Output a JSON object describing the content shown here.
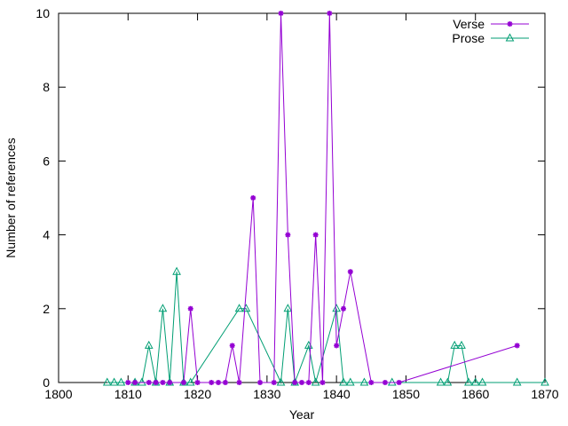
{
  "chart_data": {
    "type": "line",
    "title": "",
    "xlabel": "Year",
    "ylabel": "Number of references",
    "xlim": [
      1800,
      1870
    ],
    "ylim": [
      0,
      10
    ],
    "xticks": [
      1800,
      1810,
      1820,
      1830,
      1840,
      1850,
      1860,
      1870
    ],
    "yticks": [
      0,
      2,
      4,
      6,
      8,
      10
    ],
    "legend_position": "top-right",
    "grid": false,
    "series": [
      {
        "name": "Verse",
        "color": "#9400d3",
        "marker": "star",
        "points": [
          [
            1810,
            0
          ],
          [
            1811,
            0
          ],
          [
            1813,
            0
          ],
          [
            1814,
            0
          ],
          [
            1815,
            0
          ],
          [
            1816,
            0
          ],
          [
            1818,
            0
          ],
          [
            1819,
            2
          ],
          [
            1820,
            0
          ],
          [
            1822,
            0
          ],
          [
            1823,
            0
          ],
          [
            1824,
            0
          ],
          [
            1825,
            1
          ],
          [
            1826,
            0
          ],
          [
            1828,
            5
          ],
          [
            1829,
            0
          ],
          [
            1831,
            0
          ],
          [
            1832,
            10
          ],
          [
            1833,
            4
          ],
          [
            1834,
            0
          ],
          [
            1835,
            0
          ],
          [
            1836,
            0
          ],
          [
            1837,
            4
          ],
          [
            1838,
            0
          ],
          [
            1839,
            10
          ],
          [
            1840,
            1
          ],
          [
            1841,
            2
          ],
          [
            1842,
            3
          ],
          [
            1845,
            0
          ],
          [
            1847,
            0
          ],
          [
            1849,
            0
          ],
          [
            1866,
            1
          ]
        ]
      },
      {
        "name": "Prose",
        "color": "#009e73",
        "marker": "triangle",
        "points": [
          [
            1807,
            0
          ],
          [
            1808,
            0
          ],
          [
            1809,
            0
          ],
          [
            1811,
            0
          ],
          [
            1812,
            0
          ],
          [
            1813,
            1
          ],
          [
            1814,
            0
          ],
          [
            1815,
            2
          ],
          [
            1816,
            0
          ],
          [
            1817,
            3
          ],
          [
            1818,
            0
          ],
          [
            1819,
            0
          ],
          [
            1826,
            2
          ],
          [
            1827,
            2
          ],
          [
            1832,
            0
          ],
          [
            1833,
            2
          ],
          [
            1834,
            0
          ],
          [
            1836,
            1
          ],
          [
            1837,
            0
          ],
          [
            1840,
            2
          ],
          [
            1841,
            0
          ],
          [
            1842,
            0
          ],
          [
            1844,
            0
          ],
          [
            1848,
            0
          ],
          [
            1855,
            0
          ],
          [
            1856,
            0
          ],
          [
            1857,
            1
          ],
          [
            1858,
            1
          ],
          [
            1859,
            0
          ],
          [
            1860,
            0
          ],
          [
            1861,
            0
          ],
          [
            1866,
            0
          ],
          [
            1870,
            0
          ]
        ]
      }
    ]
  }
}
